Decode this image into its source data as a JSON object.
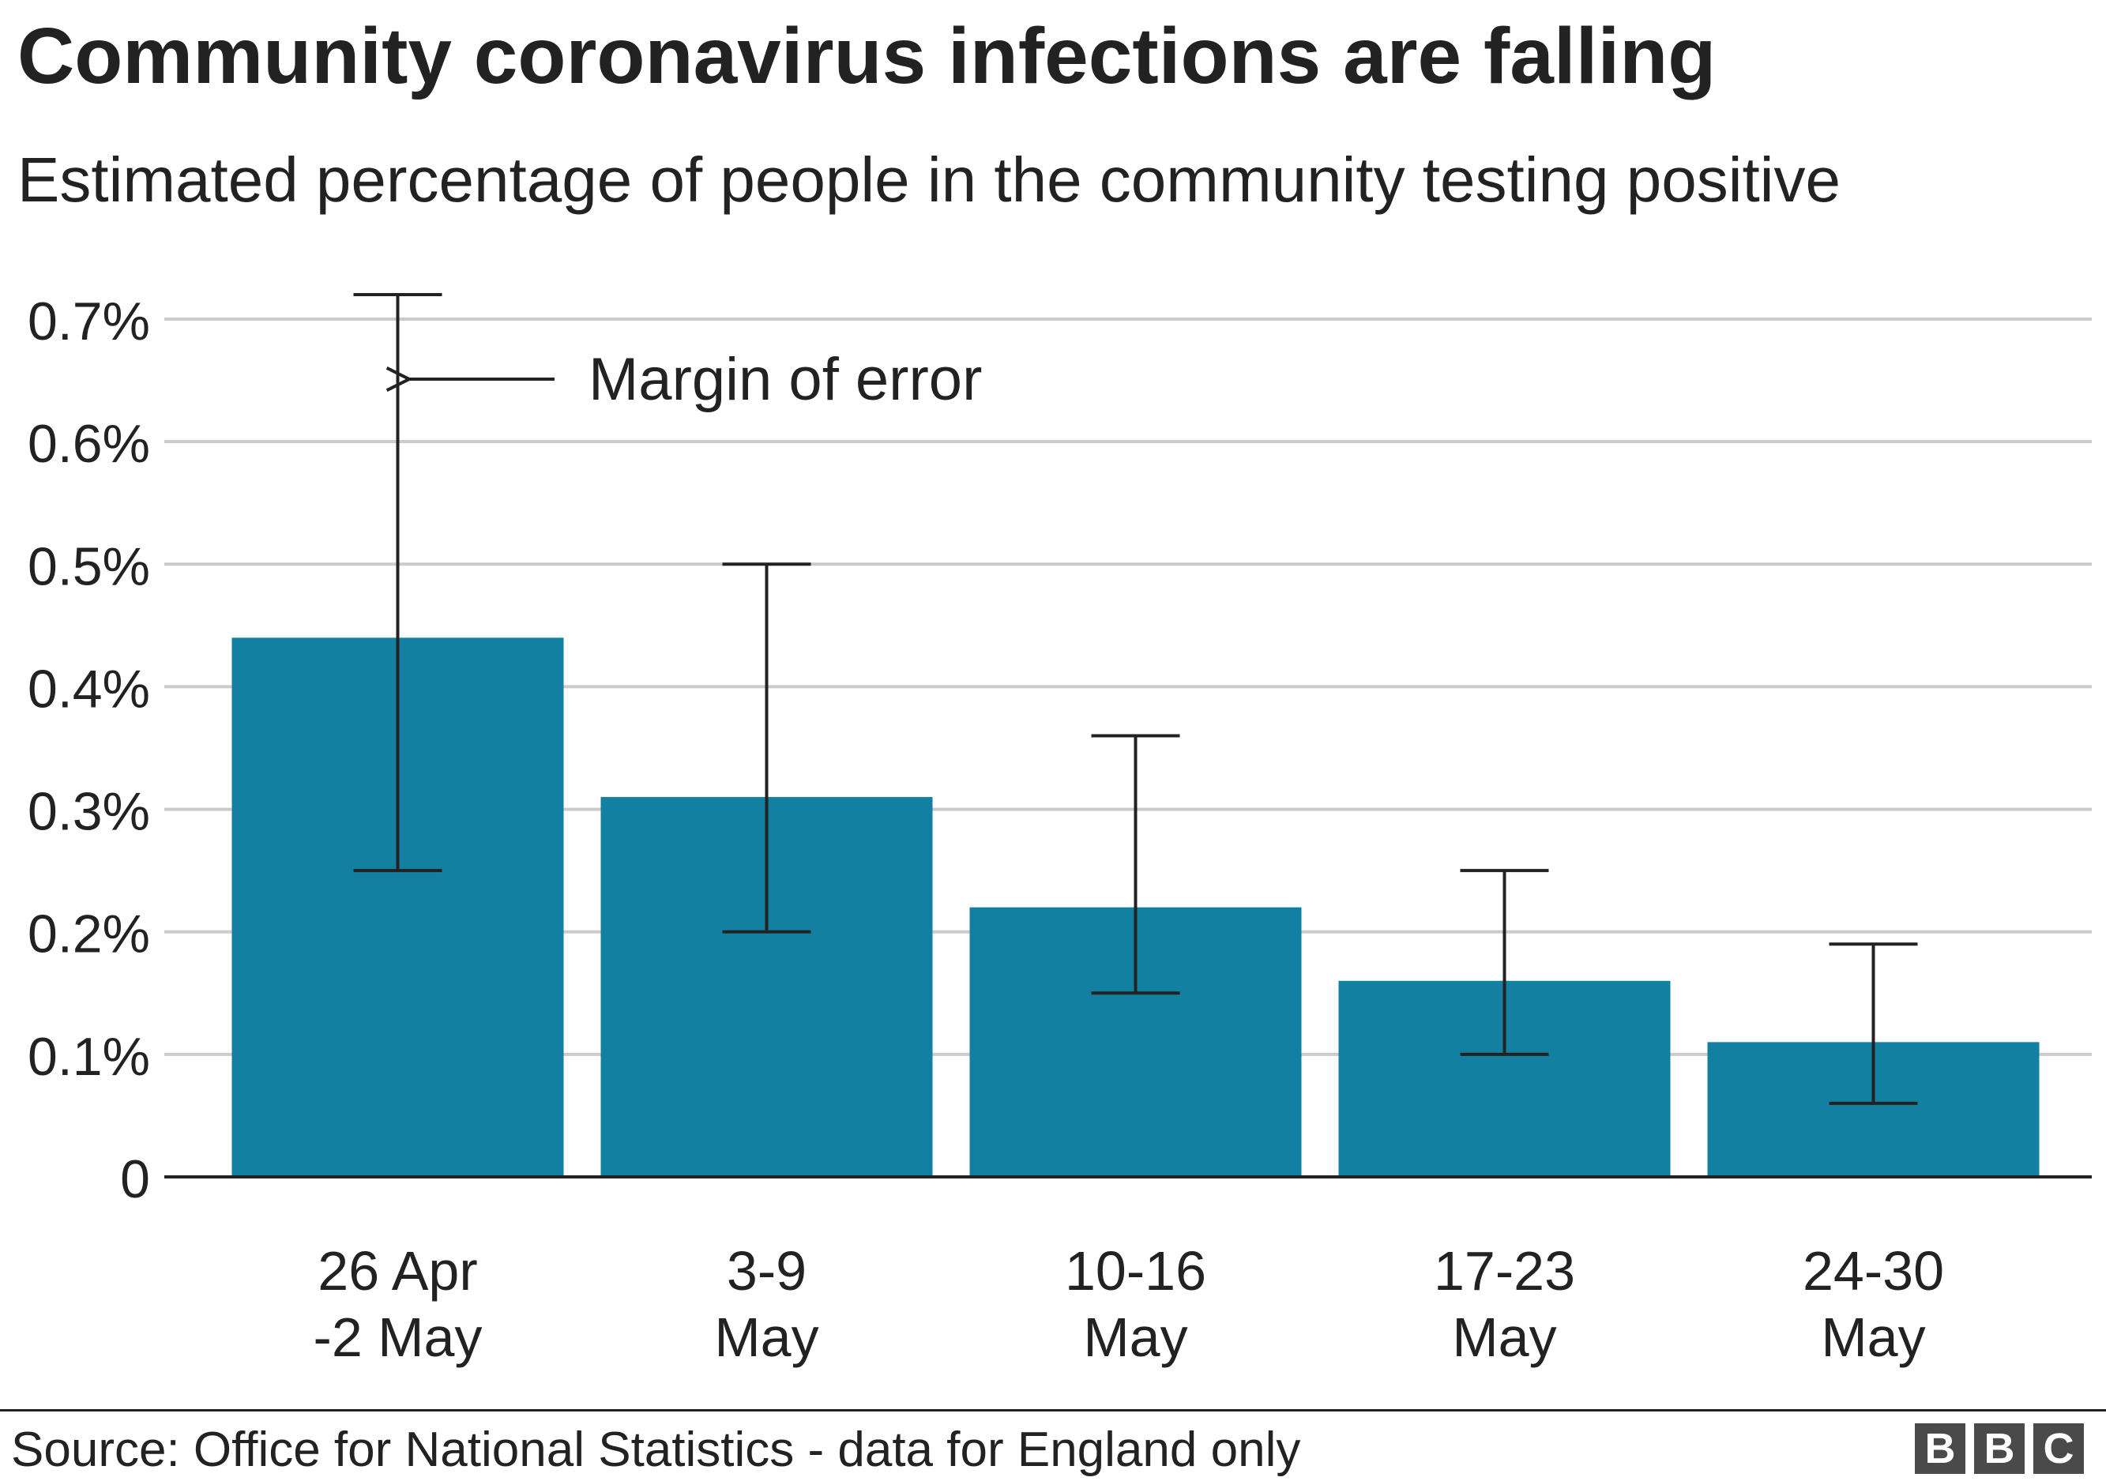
{
  "chart_data": {
    "type": "bar",
    "title": "Community coronavirus infections are falling",
    "subtitle": "Estimated percentage of people in the community testing positive",
    "categories": [
      [
        "26 Apr",
        "-2 May"
      ],
      [
        "3-9",
        "May"
      ],
      [
        "10-16",
        "May"
      ],
      [
        "17-23",
        "May"
      ],
      [
        "24-30",
        "May"
      ]
    ],
    "values": [
      0.44,
      0.31,
      0.22,
      0.16,
      0.11
    ],
    "error_low": [
      0.25,
      0.2,
      0.15,
      0.1,
      0.06
    ],
    "error_high": [
      0.72,
      0.5,
      0.36,
      0.25,
      0.19
    ],
    "ylim": [
      0,
      0.7
    ],
    "yticks": [
      0,
      0.1,
      0.2,
      0.3,
      0.4,
      0.5,
      0.6,
      0.7
    ],
    "ytick_labels": [
      "0",
      "0.1%",
      "0.2%",
      "0.3%",
      "0.4%",
      "0.5%",
      "0.6%",
      "0.7%"
    ],
    "grid": true,
    "annotation": "Margin of error",
    "bar_color": "#1380a1",
    "grid_color": "#cbcbcb",
    "axis_color": "#222222"
  },
  "footer": {
    "source": "Source: Office for National Statistics - data for England only",
    "logo_letters": [
      "B",
      "B",
      "C"
    ]
  }
}
